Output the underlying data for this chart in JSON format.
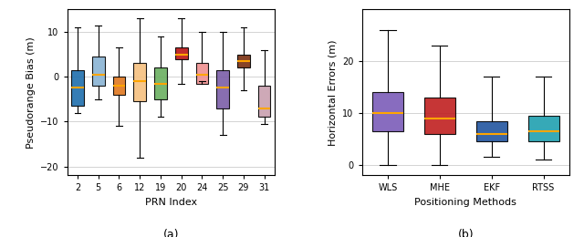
{
  "subplot_a": {
    "title": "(a)",
    "xlabel": "PRN Index",
    "ylabel": "Pseudorange Bias (m)",
    "ylim": [
      -22,
      15
    ],
    "yticks": [
      -20,
      -10,
      0,
      10
    ],
    "categories": [
      "2",
      "5",
      "6",
      "12",
      "19",
      "20",
      "24",
      "25",
      "29",
      "31"
    ],
    "colors": [
      "#1f6fad",
      "#8ab4d4",
      "#e07820",
      "#f5c080",
      "#6ab060",
      "#bb1515",
      "#f09090",
      "#7b5ea8",
      "#7a3010",
      "#c9a0b0"
    ],
    "boxes": [
      {
        "whislo": -8,
        "q1": -6.5,
        "med": -2.5,
        "q3": 1.5,
        "whishi": 11
      },
      {
        "whislo": -5,
        "q1": -2,
        "med": 0.5,
        "q3": 4.5,
        "whishi": 11.5
      },
      {
        "whislo": -11,
        "q1": -4,
        "med": -2,
        "q3": 0,
        "whishi": 6.5
      },
      {
        "whislo": -18,
        "q1": -5.5,
        "med": -1,
        "q3": 3,
        "whishi": 13
      },
      {
        "whislo": -9,
        "q1": -5,
        "med": -1.5,
        "q3": 2,
        "whishi": 9
      },
      {
        "whislo": -1.5,
        "q1": 4,
        "med": 5,
        "q3": 6.5,
        "whishi": 13
      },
      {
        "whislo": -1,
        "q1": -1.5,
        "med": 0.5,
        "q3": 3,
        "whishi": 10
      },
      {
        "whislo": -13,
        "q1": -7,
        "med": -2.5,
        "q3": 1.5,
        "whishi": 10
      },
      {
        "whislo": -3,
        "q1": 2,
        "med": 3.5,
        "q3": 5,
        "whishi": 11
      },
      {
        "whislo": -10.5,
        "q1": -9,
        "med": -7,
        "q3": -2,
        "whishi": 6
      }
    ]
  },
  "subplot_b": {
    "title": "(b)",
    "xlabel": "Positioning Methods",
    "ylabel": "Horizontal Errors (m)",
    "ylim": [
      -2,
      30
    ],
    "yticks": [
      0,
      10,
      20
    ],
    "categories": [
      "WLS",
      "MHE",
      "EKF",
      "RTSS"
    ],
    "colors": [
      "#7b5cb8",
      "#c02020",
      "#2255a0",
      "#20a0b0"
    ],
    "boxes": [
      {
        "whislo": 0,
        "q1": 6.5,
        "med": 10,
        "q3": 14,
        "whishi": 26
      },
      {
        "whislo": 0,
        "q1": 6,
        "med": 9,
        "q3": 13,
        "whishi": 23
      },
      {
        "whislo": 1.5,
        "q1": 4.5,
        "med": 6,
        "q3": 8.5,
        "whishi": 17
      },
      {
        "whislo": 1,
        "q1": 4.5,
        "med": 6.5,
        "q3": 9.5,
        "whishi": 17
      }
    ]
  }
}
